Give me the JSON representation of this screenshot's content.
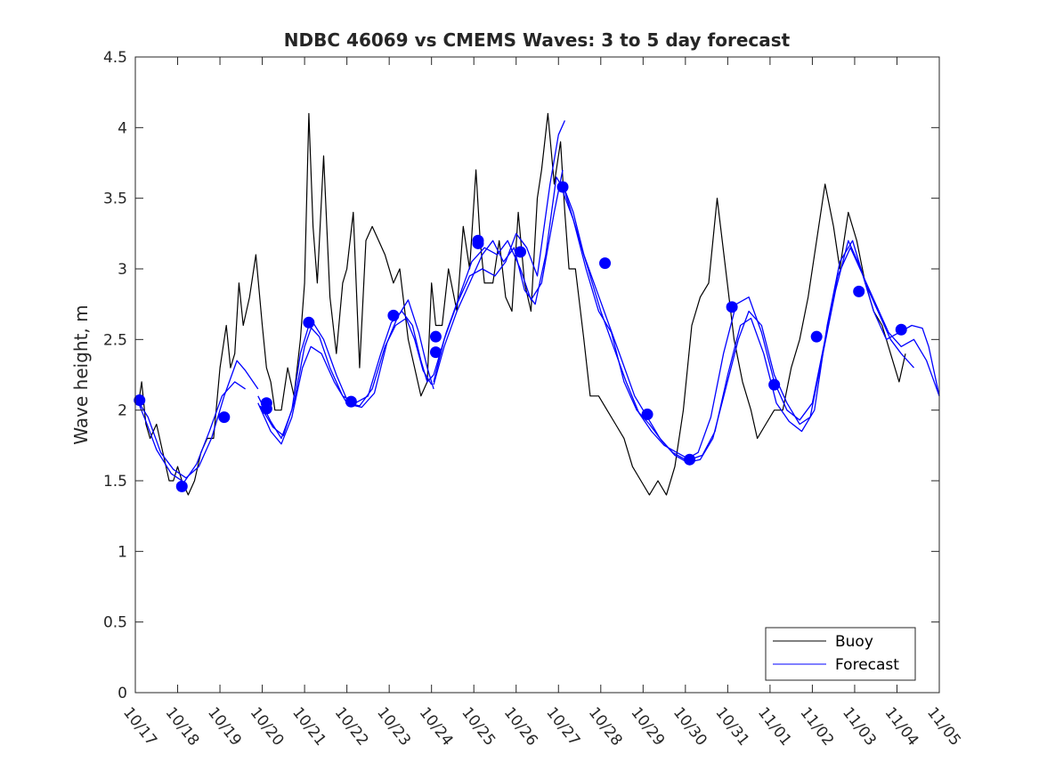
{
  "chart_data": {
    "type": "line",
    "title": "NDBC 46069 vs CMEMS Waves: 3 to 5 day forecast",
    "xlabel": "",
    "ylabel": "Wave height, m",
    "xlim": [
      0,
      19
    ],
    "ylim": [
      0,
      4.5
    ],
    "x_tick_labels": [
      "10/17",
      "10/18",
      "10/19",
      "10/20",
      "10/21",
      "10/22",
      "10/23",
      "10/24",
      "10/25",
      "10/26",
      "10/27",
      "10/28",
      "10/29",
      "10/30",
      "10/31",
      "11/01",
      "11/02",
      "11/03",
      "11/04",
      "11/05"
    ],
    "y_ticks": [
      0,
      0.5,
      1,
      1.5,
      2,
      2.5,
      3,
      3.5,
      4,
      4.5
    ],
    "y_tick_labels": [
      "0",
      "0.5",
      "1",
      "1.5",
      "2",
      "2.5",
      "3",
      "3.5",
      "4",
      "4.5"
    ],
    "legend": {
      "position": "bottom-right",
      "entries": [
        {
          "label": "Buoy",
          "color": "#000000"
        },
        {
          "label": "Forecast",
          "color": "#0000ff"
        }
      ]
    },
    "colors": {
      "buoy": "#000000",
      "forecast": "#0000ff",
      "axes": "#262626"
    },
    "series": [
      {
        "name": "Buoy",
        "x": [
          0.1,
          0.15,
          0.25,
          0.35,
          0.5,
          0.65,
          0.8,
          0.9,
          1.0,
          1.1,
          1.25,
          1.4,
          1.55,
          1.7,
          1.85,
          2.0,
          2.15,
          2.25,
          2.35,
          2.45,
          2.55,
          2.7,
          2.85,
          3.0,
          3.1,
          3.2,
          3.3,
          3.45,
          3.6,
          3.75,
          3.9,
          4.0,
          4.1,
          4.2,
          4.3,
          4.45,
          4.6,
          4.75,
          4.9,
          5.0,
          5.15,
          5.3,
          5.45,
          5.6,
          5.75,
          5.9,
          6.1,
          6.25,
          6.45,
          6.6,
          6.75,
          6.9,
          7.0,
          7.1,
          7.25,
          7.4,
          7.6,
          7.75,
          7.9,
          8.05,
          8.15,
          8.25,
          8.45,
          8.6,
          8.75,
          8.9,
          9.05,
          9.2,
          9.35,
          9.5,
          9.6,
          9.75,
          9.9,
          10.05,
          10.15,
          10.25,
          10.4,
          10.6,
          10.75,
          10.95,
          11.15,
          11.35,
          11.55,
          11.75,
          11.95,
          12.15,
          12.35,
          12.55,
          12.75,
          12.95,
          13.15,
          13.35,
          13.55,
          13.75,
          13.95,
          14.15,
          14.35,
          14.55,
          14.7,
          14.9,
          15.1,
          15.3,
          15.5,
          15.7,
          15.9,
          16.1,
          16.3,
          16.5,
          16.65,
          16.85,
          17.05,
          17.25,
          17.45,
          17.65,
          17.85,
          18.05,
          18.2
        ],
        "y": [
          2.1,
          2.2,
          1.9,
          1.8,
          1.9,
          1.7,
          1.5,
          1.5,
          1.6,
          1.5,
          1.4,
          1.5,
          1.7,
          1.8,
          1.8,
          2.3,
          2.6,
          2.3,
          2.4,
          2.9,
          2.6,
          2.8,
          3.1,
          2.6,
          2.3,
          2.2,
          2.0,
          2.0,
          2.3,
          2.1,
          2.5,
          2.9,
          4.1,
          3.3,
          2.9,
          3.8,
          2.8,
          2.4,
          2.9,
          3.0,
          3.4,
          2.3,
          3.2,
          3.3,
          3.2,
          3.1,
          2.9,
          3.0,
          2.5,
          2.3,
          2.1,
          2.2,
          2.9,
          2.6,
          2.6,
          3.0,
          2.7,
          3.3,
          3.0,
          3.7,
          3.2,
          2.9,
          2.9,
          3.2,
          2.8,
          2.7,
          3.4,
          2.9,
          2.7,
          3.5,
          3.7,
          4.1,
          3.6,
          3.9,
          3.4,
          3.0,
          3.0,
          2.5,
          2.1,
          2.1,
          2.0,
          1.9,
          1.8,
          1.6,
          1.5,
          1.4,
          1.5,
          1.4,
          1.6,
          2.0,
          2.6,
          2.8,
          2.9,
          3.5,
          3.0,
          2.5,
          2.2,
          2.0,
          1.8,
          1.9,
          2.0,
          2.0,
          2.3,
          2.5,
          2.8,
          3.2,
          3.6,
          3.3,
          3.0,
          3.4,
          3.2,
          2.9,
          2.7,
          2.6,
          2.4,
          2.2,
          2.4
        ]
      },
      {
        "name": "Forecast",
        "segments": [
          {
            "x": [
              0.05,
              0.3,
              0.6,
              0.9,
              1.2,
              1.5,
              1.8,
              2.1,
              2.4,
              2.6,
              2.9
            ],
            "y": [
              2.07,
              1.95,
              1.7,
              1.58,
              1.52,
              1.6,
              1.8,
              2.1,
              2.35,
              2.28,
              2.15
            ]
          },
          {
            "x": [
              0.05,
              0.25,
              0.5,
              0.85,
              1.15,
              1.45,
              1.75,
              2.05,
              2.35,
              2.6
            ],
            "y": [
              2.07,
              1.92,
              1.72,
              1.55,
              1.49,
              1.62,
              1.85,
              2.1,
              2.2,
              2.15
            ]
          },
          {
            "x": [
              2.9,
              3.2,
              3.45,
              3.7,
              3.9,
              4.1,
              4.35,
              4.6,
              4.9,
              5.2,
              5.5,
              5.8,
              6.05,
              6.3,
              6.55,
              6.75,
              6.9,
              7.05
            ],
            "y": [
              2.1,
              1.92,
              1.8,
              2.0,
              2.4,
              2.6,
              2.52,
              2.3,
              2.1,
              2.05,
              2.1,
              2.4,
              2.62,
              2.7,
              2.6,
              2.35,
              2.2,
              2.25
            ]
          },
          {
            "x": [
              2.9,
              3.2,
              3.45,
              3.7,
              3.95,
              4.15,
              4.4,
              4.7,
              5.0,
              5.3,
              5.6,
              5.9,
              6.15,
              6.4,
              6.6,
              6.8,
              7.0
            ],
            "y": [
              2.05,
              1.85,
              1.76,
              1.95,
              2.3,
              2.45,
              2.4,
              2.2,
              2.05,
              2.03,
              2.15,
              2.45,
              2.6,
              2.65,
              2.5,
              2.28,
              2.18
            ]
          },
          {
            "x": [
              2.95,
              3.25,
              3.5,
              3.75,
              4.0,
              4.2,
              4.45,
              4.75,
              5.05,
              5.35,
              5.65,
              5.95,
              6.2,
              6.45,
              6.7,
              6.9,
              7.05
            ],
            "y": [
              2.03,
              1.88,
              1.82,
              2.05,
              2.45,
              2.62,
              2.5,
              2.25,
              2.04,
              2.02,
              2.12,
              2.48,
              2.66,
              2.78,
              2.55,
              2.3,
              2.15
            ]
          },
          {
            "x": [
              7.05,
              7.3,
              7.6,
              7.9,
              8.2,
              8.5,
              8.75,
              9.0,
              9.25,
              9.5,
              9.8,
              10.0,
              10.15
            ],
            "y": [
              2.2,
              2.5,
              2.75,
              2.95,
              3.0,
              2.95,
              3.05,
              3.25,
              3.15,
              2.95,
              3.6,
              3.95,
              4.05
            ]
          },
          {
            "x": [
              7.05,
              7.35,
              7.65,
              7.95,
              8.25,
              8.55,
              8.8,
              9.1,
              9.35,
              9.6,
              9.9,
              10.1
            ],
            "y": [
              2.25,
              2.55,
              2.8,
              3.05,
              3.15,
              3.1,
              3.2,
              3.0,
              2.78,
              2.9,
              3.4,
              3.7
            ]
          },
          {
            "x": [
              7.05,
              7.3,
              7.6,
              7.9,
              8.2,
              8.45,
              8.7,
              8.95,
              9.2,
              9.45,
              9.7,
              9.95,
              10.15
            ],
            "y": [
              2.18,
              2.45,
              2.7,
              2.9,
              3.1,
              3.2,
              3.05,
              3.15,
              2.85,
              2.75,
              3.1,
              3.65,
              3.55
            ]
          },
          {
            "x": [
              10.1,
              10.35,
              10.6,
              10.9,
              11.2,
              11.5,
              11.8,
              12.1,
              12.4,
              12.7,
              13.0,
              13.3,
              13.6,
              13.9,
              14.2,
              14.5,
              14.8,
              15.1,
              15.4,
              15.7,
              16.0,
              16.3,
              16.6,
              16.9,
              17.2,
              17.5,
              17.8,
              18.1,
              18.4,
              18.7,
              19.0
            ],
            "y": [
              3.6,
              3.4,
              3.1,
              2.85,
              2.6,
              2.35,
              2.1,
              1.95,
              1.8,
              1.7,
              1.65,
              1.7,
              1.95,
              2.4,
              2.75,
              2.8,
              2.55,
              2.2,
              2.0,
              1.93,
              2.05,
              2.5,
              2.95,
              3.15,
              2.95,
              2.75,
              2.55,
              2.45,
              2.5,
              2.35,
              2.1
            ]
          },
          {
            "x": [
              10.1,
              10.35,
              10.65,
              10.95,
              11.25,
              11.55,
              11.85,
              12.15,
              12.45,
              12.75,
              13.05,
              13.35,
              13.65,
              13.95,
              14.25,
              14.5,
              14.8,
              15.1,
              15.4,
              15.7,
              15.95,
              16.25,
              16.55,
              16.85,
              17.15,
              17.45,
              17.75,
              18.05,
              18.35,
              18.6,
              18.75,
              19.0
            ],
            "y": [
              3.55,
              3.35,
              3.0,
              2.7,
              2.55,
              2.2,
              2.0,
              1.9,
              1.78,
              1.68,
              1.63,
              1.65,
              1.8,
              2.15,
              2.5,
              2.7,
              2.6,
              2.25,
              2.05,
              1.9,
              1.95,
              2.4,
              2.85,
              3.2,
              3.0,
              2.7,
              2.5,
              2.55,
              2.6,
              2.58,
              2.45,
              2.1
            ]
          },
          {
            "x": [
              10.1,
              10.4,
              10.7,
              11.0,
              11.3,
              11.6,
              11.9,
              12.2,
              12.5,
              12.8,
              13.1,
              13.4,
              13.7,
              14.0,
              14.3,
              14.55,
              14.85,
              15.15,
              15.45,
              15.75,
              16.05,
              16.35,
              16.65,
              16.95,
              17.25,
              17.55,
              17.85,
              18.1,
              18.4
            ],
            "y": [
              3.6,
              3.3,
              3.0,
              2.7,
              2.45,
              2.2,
              1.98,
              1.85,
              1.75,
              1.7,
              1.65,
              1.68,
              1.85,
              2.25,
              2.6,
              2.65,
              2.4,
              2.05,
              1.92,
              1.85,
              2.0,
              2.6,
              3.05,
              3.2,
              2.9,
              2.7,
              2.5,
              2.4,
              2.3
            ]
          }
        ]
      },
      {
        "name": "Forecast markers",
        "x": [
          0.1,
          1.1,
          2.1,
          3.1,
          3.1,
          4.1,
          5.1,
          6.1,
          7.1,
          7.1,
          8.1,
          8.1,
          9.1,
          10.1,
          11.1,
          12.1,
          13.1,
          14.1,
          15.1,
          16.1,
          17.1,
          18.1
        ],
        "y": [
          2.07,
          1.46,
          1.95,
          2.05,
          2.01,
          2.62,
          2.06,
          2.67,
          2.41,
          2.52,
          3.18,
          3.2,
          3.12,
          3.58,
          3.04,
          1.97,
          1.65,
          2.73,
          2.18,
          2.52,
          2.84,
          2.57
        ]
      }
    ]
  }
}
